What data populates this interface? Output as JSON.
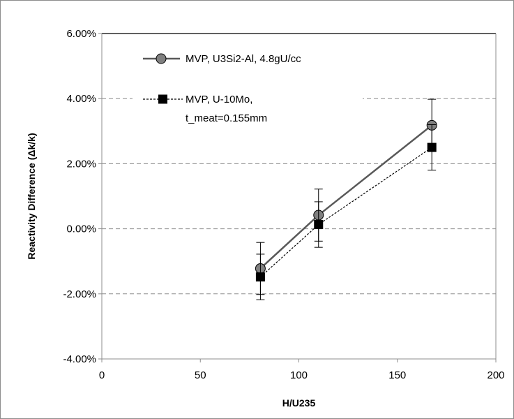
{
  "chart_data": {
    "type": "line",
    "xlabel": "H/U235",
    "ylabel": "Reactivity Difference (Δk/k)",
    "xlim": [
      0,
      200
    ],
    "ylim": [
      -0.04,
      0.06
    ],
    "x_ticks": [
      0,
      50,
      100,
      150,
      200
    ],
    "x_tick_labels": [
      "0",
      "50",
      "100",
      "150",
      "200"
    ],
    "y_ticks": [
      -0.04,
      -0.02,
      0.0,
      0.02,
      0.04,
      0.06
    ],
    "y_tick_labels": [
      "-4.00%",
      "-2.00%",
      "0.00%",
      "2.00%",
      "4.00%",
      "6.00%"
    ],
    "grid": "horizontal dashed",
    "legend_position": "top-left",
    "series": [
      {
        "name": "MVP, U3Si2-Al, 4.8gU/cc",
        "marker": "circle",
        "line": "solid",
        "color": "#595959",
        "x": [
          80.5,
          110,
          167.5
        ],
        "y": [
          -0.0122,
          0.0042,
          0.0318
        ],
        "err": [
          0.008,
          0.008,
          0.008
        ]
      },
      {
        "name": "MVP, U-10Mo, t_meat=0.155mm",
        "name_lines": [
          "MVP, U-10Mo,",
          "t_meat=0.155mm"
        ],
        "marker": "square",
        "line": "dashed",
        "color": "#000000",
        "x": [
          80.5,
          110,
          167.5
        ],
        "y": [
          -0.0148,
          0.0013,
          0.025
        ],
        "err": [
          0.007,
          0.007,
          0.007
        ]
      }
    ]
  }
}
